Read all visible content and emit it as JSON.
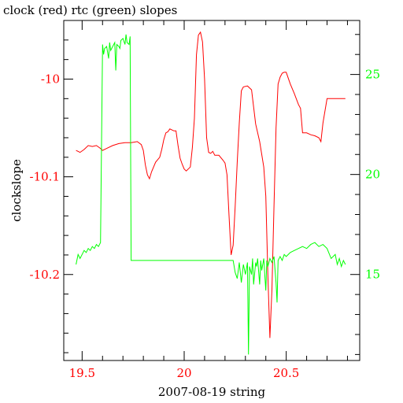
{
  "chart_data": {
    "type": "line",
    "title": "clock (red) rtc (green) slopes",
    "xlabel": "2007-08-19 string",
    "ylabel": "clockslope",
    "xlim": [
      19.41,
      20.86
    ],
    "ylim_left": [
      -10.288,
      -9.94
    ],
    "ylim_right": [
      10.7,
      27.7
    ],
    "x_ticks": [
      19.5,
      20,
      20.5
    ],
    "x_tick_labels": [
      "19.5",
      "20",
      "20.5"
    ],
    "y_left_ticks": [
      -10.2,
      -10.1,
      -10.0
    ],
    "y_left_tick_labels": [
      "-10.2",
      "-10.1",
      "-10"
    ],
    "y_right_ticks": [
      15,
      20,
      25
    ],
    "y_right_tick_labels": [
      "15",
      "20",
      "25"
    ],
    "colors": {
      "clock": "#ff0000",
      "rtc": "#00ff00",
      "axis": "#000000"
    },
    "series": [
      {
        "axis": "left",
        "color": "#ff0000",
        "x": [
          19.47,
          19.49,
          19.51,
          19.53,
          19.55,
          19.57,
          19.59,
          19.6,
          19.62,
          19.65,
          19.68,
          19.71,
          19.74,
          19.77,
          19.79,
          19.8,
          19.81,
          19.82,
          19.83,
          19.84,
          19.86,
          19.88,
          19.89,
          19.9,
          19.91,
          19.92,
          19.93,
          19.95,
          19.96,
          19.97,
          19.98,
          19.99,
          20.0,
          20.01,
          20.03,
          20.04,
          20.05,
          20.06,
          20.07,
          20.08,
          20.09,
          20.1,
          20.11,
          20.12,
          20.13,
          20.14,
          20.15,
          20.16,
          20.17,
          20.19,
          20.2,
          20.21,
          20.22,
          20.23,
          20.24,
          20.25,
          20.26,
          20.27,
          20.28,
          20.29,
          20.31,
          20.33,
          20.35,
          20.37,
          20.39,
          20.4,
          20.41,
          20.42,
          20.43,
          20.44,
          20.45,
          20.46,
          20.47,
          20.48,
          20.49,
          20.5,
          20.52,
          20.54,
          20.56,
          20.57,
          20.58,
          20.59,
          20.6,
          20.62,
          20.64,
          20.66,
          20.67,
          20.68,
          20.7,
          20.72,
          20.74,
          20.76,
          20.77,
          20.79
        ],
        "y": [
          -10.073,
          -10.075,
          -10.072,
          -10.068,
          -10.069,
          -10.068,
          -10.071,
          -10.073,
          -10.071,
          -10.068,
          -10.066,
          -10.065,
          -10.065,
          -10.064,
          -10.067,
          -10.073,
          -10.088,
          -10.098,
          -10.102,
          -10.095,
          -10.085,
          -10.08,
          -10.072,
          -10.062,
          -10.055,
          -10.054,
          -10.051,
          -10.053,
          -10.053,
          -10.068,
          -10.081,
          -10.087,
          -10.092,
          -10.094,
          -10.09,
          -10.07,
          -10.04,
          -9.975,
          -9.955,
          -9.952,
          -9.962,
          -10.0,
          -10.06,
          -10.075,
          -10.076,
          -10.074,
          -10.078,
          -10.078,
          -10.078,
          -10.083,
          -10.086,
          -10.098,
          -10.14,
          -10.18,
          -10.17,
          -10.13,
          -10.085,
          -10.045,
          -10.012,
          -10.008,
          -10.007,
          -10.011,
          -10.046,
          -10.064,
          -10.09,
          -10.12,
          -10.2,
          -10.265,
          -10.215,
          -10.13,
          -10.05,
          -10.005,
          -9.998,
          -9.994,
          -9.993,
          -9.993,
          -10.005,
          -10.015,
          -10.026,
          -10.03,
          -10.055,
          -10.055,
          -10.055,
          -10.057,
          -10.058,
          -10.06,
          -10.064,
          -10.045,
          -10.02,
          -10.02,
          -10.02,
          -10.02,
          -10.02,
          -10.02
        ]
      },
      {
        "axis": "right",
        "color": "#00ff00",
        "x": [
          19.47,
          19.48,
          19.49,
          19.5,
          19.51,
          19.52,
          19.53,
          19.54,
          19.55,
          19.56,
          19.57,
          19.58,
          19.59,
          19.6,
          19.605,
          19.61,
          19.62,
          19.63,
          19.635,
          19.64,
          19.65,
          19.66,
          19.665,
          19.67,
          19.68,
          19.685,
          19.69,
          19.7,
          19.71,
          19.715,
          19.72,
          19.73,
          19.735,
          19.74,
          19.75,
          19.76,
          19.77,
          19.78,
          19.79,
          19.8,
          19.82,
          19.85,
          19.9,
          19.95,
          20.0,
          20.05,
          20.1,
          20.15,
          20.2,
          20.24,
          20.25,
          20.26,
          20.27,
          20.28,
          20.29,
          20.3,
          20.31,
          20.315,
          20.32,
          20.33,
          20.335,
          20.34,
          20.35,
          20.355,
          20.36,
          20.37,
          20.375,
          20.38,
          20.39,
          20.4,
          20.405,
          20.41,
          20.42,
          20.43,
          20.44,
          20.45,
          20.455,
          20.46,
          20.47,
          20.48,
          20.49,
          20.5,
          20.52,
          20.54,
          20.56,
          20.58,
          20.6,
          20.62,
          20.64,
          20.66,
          20.68,
          20.7,
          20.72,
          20.74,
          20.75,
          20.76,
          20.77,
          20.78,
          20.79
        ],
        "y": [
          15.5,
          16.0,
          15.8,
          16.0,
          16.2,
          16.1,
          16.3,
          16.2,
          16.4,
          16.3,
          16.5,
          16.4,
          16.6,
          26.5,
          26.0,
          26.3,
          26.4,
          25.8,
          26.6,
          26.2,
          26.4,
          26.6,
          25.2,
          26.5,
          26.4,
          26.3,
          26.7,
          26.8,
          26.5,
          27.0,
          26.6,
          26.5,
          26.9,
          15.7,
          15.7,
          15.7,
          15.7,
          15.7,
          15.7,
          15.7,
          15.7,
          15.7,
          15.7,
          15.7,
          15.7,
          15.7,
          15.7,
          15.7,
          15.7,
          15.7,
          15.1,
          14.8,
          15.6,
          14.6,
          15.5,
          15.0,
          15.6,
          11.0,
          15.4,
          15.0,
          15.8,
          14.5,
          15.6,
          15.4,
          15.8,
          14.5,
          15.7,
          15.2,
          15.8,
          14.2,
          15.7,
          15.4,
          15.8,
          15.6,
          15.9,
          14.6,
          13.6,
          15.7,
          15.9,
          15.7,
          16.0,
          15.9,
          16.1,
          16.2,
          16.3,
          16.4,
          16.3,
          16.5,
          16.6,
          16.4,
          16.5,
          16.3,
          15.8,
          16.0,
          15.5,
          15.8,
          15.4,
          15.7,
          15.5
        ]
      }
    ]
  }
}
